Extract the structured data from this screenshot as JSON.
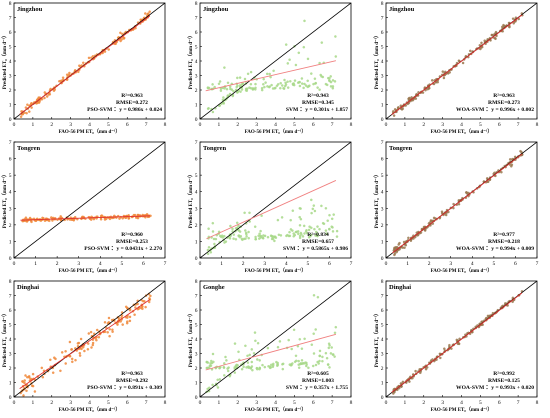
{
  "figure": {
    "xlabel": "FAO-56 PM ET₀（mm d⁻¹）",
    "ylabel": "Predicted ET₀（mm d⁻¹）"
  },
  "chart_data": [
    {
      "type": "scatter",
      "title": "Jingzhou",
      "model": "PSO-SVM",
      "r2": "R²=0.963",
      "rmse": "RMSE=0.272",
      "eq": "PSO-SVM ：y = 0.986x + 0.024",
      "slope": 0.986,
      "intercept": 0.024,
      "pattern": "tight",
      "sd": 0.12,
      "xlim": [
        0,
        8
      ],
      "ylim": [
        0,
        8
      ],
      "xticks": [
        0,
        1,
        2,
        3,
        4,
        5,
        6,
        7,
        8
      ],
      "yticks": [
        0,
        1,
        2,
        3,
        4,
        5,
        6,
        7,
        8
      ],
      "color": "#f08a3c",
      "fit_color": "#e03030",
      "grid": false
    },
    {
      "type": "scatter",
      "title": "Jingzhou",
      "model": "SVM",
      "r2": "R²=0.943",
      "rmse": "RMSE=0.345",
      "eq": "SVM ：y = 0.301x + 1.857",
      "slope": 0.301,
      "intercept": 1.857,
      "pattern": "flat_spread",
      "sd": 0.5,
      "xlim": [
        0,
        8
      ],
      "ylim": [
        0,
        8
      ],
      "xticks": [
        0,
        1,
        2,
        3,
        4,
        5,
        6,
        7,
        8
      ],
      "yticks": [
        0,
        1,
        2,
        3,
        4,
        5,
        6,
        7,
        8
      ],
      "color": "#a8d88a",
      "fit_color": "#f08080",
      "grid": false
    },
    {
      "type": "scatter",
      "title": "Jingzhou",
      "model": "WOA-SVM",
      "r2": "R²=0.963",
      "rmse": "RMSE=0.273",
      "eq": "WOA-SVM ：y = 0.996x + 0.002",
      "slope": 0.996,
      "intercept": 0.002,
      "pattern": "tight",
      "sd": 0.1,
      "xlim": [
        0,
        8
      ],
      "ylim": [
        0,
        8
      ],
      "xticks": [
        0,
        1,
        2,
        3,
        4,
        5,
        6,
        7,
        8
      ],
      "yticks": [
        0,
        1,
        2,
        3,
        4,
        5,
        6,
        7,
        8
      ],
      "color": "#9a7850",
      "fit_color": "#e03030",
      "grid": false
    },
    {
      "type": "scatter",
      "title": "Tongren",
      "model": "PSO-SVM",
      "r2": "R²=0.960",
      "rmse": "RMSE=0.253",
      "eq": "PSO-SVM ：y = 0.0431x + 2.270",
      "slope": 0.0431,
      "intercept": 2.27,
      "pattern": "flat",
      "sd": 0.06,
      "xlim": [
        0,
        7
      ],
      "ylim": [
        0,
        7
      ],
      "xticks": [
        0,
        1,
        2,
        3,
        4,
        5,
        6,
        7
      ],
      "yticks": [
        0,
        1,
        2,
        3,
        4,
        5,
        6,
        7
      ],
      "color": "#f08a3c",
      "fit_color": "#e03030",
      "grid": false
    },
    {
      "type": "scatter",
      "title": "Tongren",
      "model": "SVM",
      "r2": "R²=0.834",
      "rmse": "RMSE=0.657",
      "eq": "SVM ：y = 0.5865x + 0.986",
      "slope": 0.5865,
      "intercept": 0.986,
      "pattern": "flat_spread",
      "sd": 0.4,
      "xlim": [
        0,
        7
      ],
      "ylim": [
        0,
        7
      ],
      "xticks": [
        0,
        1,
        2,
        3,
        4,
        5,
        6,
        7
      ],
      "yticks": [
        0,
        1,
        2,
        3,
        4,
        5,
        6,
        7
      ],
      "color": "#a8d88a",
      "fit_color": "#f08080",
      "grid": false
    },
    {
      "type": "scatter",
      "title": "Tongren",
      "model": "WOA-SVM",
      "r2": "R²=0.977",
      "rmse": "RMSE=0.218",
      "eq": "WOA-SVM ：y = 0.994x + 0.009",
      "slope": 0.994,
      "intercept": 0.009,
      "pattern": "tight",
      "sd": 0.1,
      "xlim": [
        0,
        7
      ],
      "ylim": [
        0,
        7
      ],
      "xticks": [
        0,
        1,
        2,
        3,
        4,
        5,
        6,
        7
      ],
      "yticks": [
        0,
        1,
        2,
        3,
        4,
        5,
        6,
        7
      ],
      "color": "#9a7850",
      "fit_color": "#e03030",
      "grid": false
    },
    {
      "type": "scatter",
      "title": "Dinghai",
      "model": "PSO-SVM",
      "r2": "R²=0.963",
      "rmse": "RMSE=0.292",
      "eq": "PSO-SVM ：y = 0.891x + 0.309",
      "slope": 0.891,
      "intercept": 0.309,
      "pattern": "spread",
      "sd": 0.3,
      "xlim": [
        0,
        8
      ],
      "ylim": [
        0,
        8
      ],
      "xticks": [
        0,
        1,
        2,
        3,
        4,
        5,
        6,
        7,
        8
      ],
      "yticks": [
        0,
        1,
        2,
        3,
        4,
        5,
        6,
        7,
        8
      ],
      "color": "#f08a3c",
      "fit_color": "#e03030",
      "grid": false
    },
    {
      "type": "scatter",
      "title": "Gonghe",
      "model": "SVM",
      "r2": "R²=0.605",
      "rmse": "RMSE=1.003",
      "eq": "SVM ：y = 0.357x + 1.755",
      "slope": 0.357,
      "intercept": 1.755,
      "pattern": "flat_spread",
      "sd": 0.5,
      "xlim": [
        0,
        8
      ],
      "ylim": [
        0,
        8
      ],
      "xticks": [
        0,
        1,
        2,
        3,
        4,
        5,
        6,
        7,
        8
      ],
      "yticks": [
        0,
        1,
        2,
        3,
        4,
        5,
        6,
        7,
        8
      ],
      "color": "#a8d88a",
      "fit_color": "#f08080",
      "grid": false
    },
    {
      "type": "scatter",
      "title": "Dinghai",
      "model": "WOA-SVM",
      "r2": "R²=0.992",
      "rmse": "RMSE=0.125",
      "eq": "WOA-SVM ：y = 0.993x + 0.020",
      "slope": 0.993,
      "intercept": 0.02,
      "pattern": "tight",
      "sd": 0.08,
      "xlim": [
        0,
        8
      ],
      "ylim": [
        0,
        8
      ],
      "xticks": [
        0,
        1,
        2,
        3,
        4,
        5,
        6,
        7,
        8
      ],
      "yticks": [
        0,
        1,
        2,
        3,
        4,
        5,
        6,
        7,
        8
      ],
      "color": "#9a7850",
      "fit_color": "#e03030",
      "grid": false
    }
  ]
}
